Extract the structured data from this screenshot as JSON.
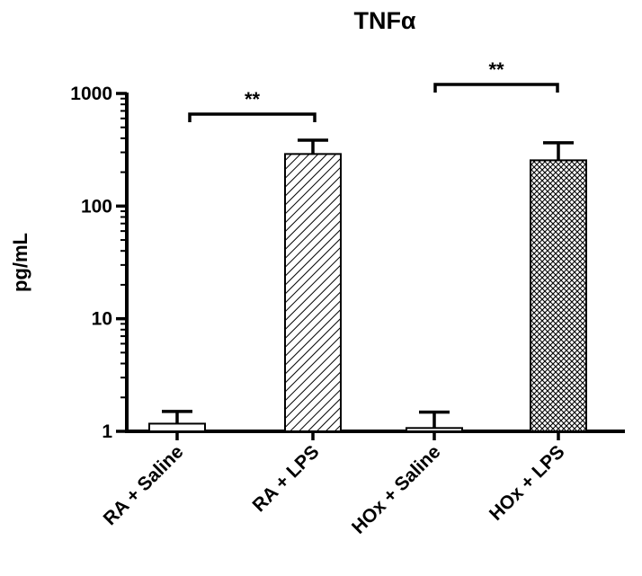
{
  "chart_data": {
    "type": "bar",
    "title": "TNFα",
    "ylabel": "pg/mL",
    "xlabel": "",
    "yscale": "log",
    "ylim": [
      1,
      1000
    ],
    "yticks": [
      {
        "value": 1,
        "label": "1"
      },
      {
        "value": 10,
        "label": "10"
      },
      {
        "value": 100,
        "label": "100"
      },
      {
        "value": 1000,
        "label": "1000"
      }
    ],
    "categories": [
      "RA + Saline",
      "RA + LPS",
      "HOx + Saline",
      "HOx + LPS"
    ],
    "series": [
      {
        "values": [
          1.17,
          290,
          1.07,
          255
        ],
        "error_upper": [
          1.5,
          385,
          1.48,
          365
        ],
        "fills": [
          "white",
          "diagonal-hatch",
          "white",
          "crosshatch"
        ]
      }
    ],
    "significance": [
      {
        "from": 0,
        "to": 1,
        "label": "**"
      },
      {
        "from": 2,
        "to": 3,
        "label": "**"
      }
    ],
    "grid": false,
    "legend": "none"
  }
}
